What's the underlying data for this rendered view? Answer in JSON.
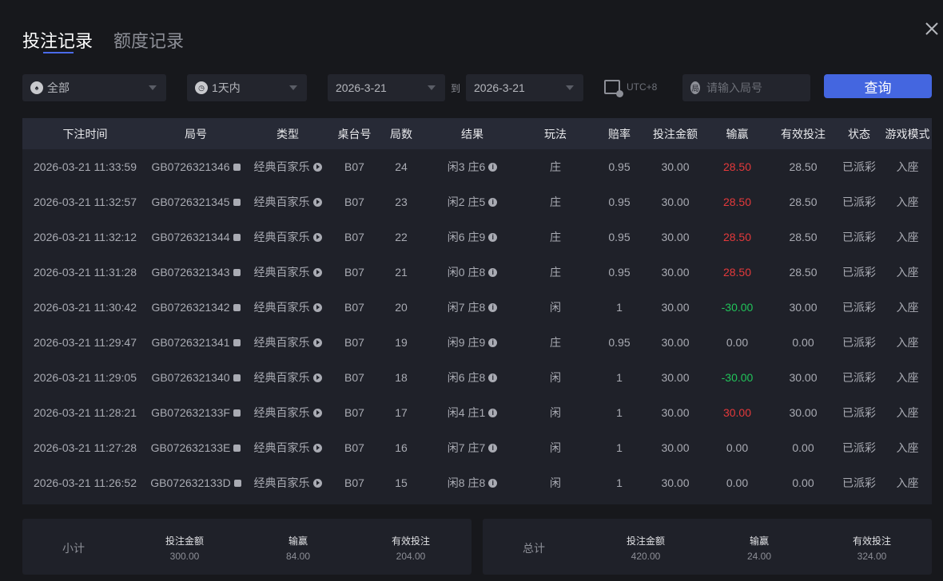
{
  "tabs": [
    {
      "label": "投注记录",
      "active": true
    },
    {
      "label": "额度记录",
      "active": false
    }
  ],
  "filters": {
    "game": "全部",
    "period": "1天内",
    "date_from": "2026-3-21",
    "to_label": "到",
    "date_to": "2026-3-21",
    "timezone": "UTC+8",
    "search_placeholder": "请输入局号",
    "query_label": "查询"
  },
  "columns": [
    "下注时间",
    "局号",
    "类型",
    "桌台号",
    "局数",
    "结果",
    "玩法",
    "赔率",
    "投注金额",
    "输赢",
    "有效投注",
    "状态",
    "游戏模式"
  ],
  "rows": [
    [
      "2026-03-21 11:33:59",
      "GB0726321346",
      "经典百家乐",
      "B07",
      "24",
      "闲3 庄6",
      "庄",
      "0.95",
      "30.00",
      "28.50",
      "28.50",
      "已派彩",
      "入座"
    ],
    [
      "2026-03-21 11:32:57",
      "GB0726321345",
      "经典百家乐",
      "B07",
      "23",
      "闲2 庄5",
      "庄",
      "0.95",
      "30.00",
      "28.50",
      "28.50",
      "已派彩",
      "入座"
    ],
    [
      "2026-03-21 11:32:12",
      "GB0726321344",
      "经典百家乐",
      "B07",
      "22",
      "闲6 庄9",
      "庄",
      "0.95",
      "30.00",
      "28.50",
      "28.50",
      "已派彩",
      "入座"
    ],
    [
      "2026-03-21 11:31:28",
      "GB0726321343",
      "经典百家乐",
      "B07",
      "21",
      "闲0 庄8",
      "庄",
      "0.95",
      "30.00",
      "28.50",
      "28.50",
      "已派彩",
      "入座"
    ],
    [
      "2026-03-21 11:30:42",
      "GB0726321342",
      "经典百家乐",
      "B07",
      "20",
      "闲7 庄8",
      "闲",
      "1",
      "30.00",
      "-30.00",
      "30.00",
      "已派彩",
      "入座"
    ],
    [
      "2026-03-21 11:29:47",
      "GB0726321341",
      "经典百家乐",
      "B07",
      "19",
      "闲9 庄9",
      "庄",
      "0.95",
      "30.00",
      "0.00",
      "0.00",
      "已派彩",
      "入座"
    ],
    [
      "2026-03-21 11:29:05",
      "GB0726321340",
      "经典百家乐",
      "B07",
      "18",
      "闲6 庄8",
      "闲",
      "1",
      "30.00",
      "-30.00",
      "30.00",
      "已派彩",
      "入座"
    ],
    [
      "2026-03-21 11:28:21",
      "GB072632133F",
      "经典百家乐",
      "B07",
      "17",
      "闲4 庄1",
      "闲",
      "1",
      "30.00",
      "30.00",
      "30.00",
      "已派彩",
      "入座"
    ],
    [
      "2026-03-21 11:27:28",
      "GB072632133E",
      "经典百家乐",
      "B07",
      "16",
      "闲7 庄7",
      "闲",
      "1",
      "30.00",
      "0.00",
      "0.00",
      "已派彩",
      "入座"
    ],
    [
      "2026-03-21 11:26:52",
      "GB072632133D",
      "经典百家乐",
      "B07",
      "15",
      "闲8 庄8",
      "闲",
      "1",
      "30.00",
      "0.00",
      "0.00",
      "已派彩",
      "入座"
    ]
  ],
  "subtotal": {
    "label": "小计",
    "bet_label": "投注金额",
    "bet": "300.00",
    "win_label": "输赢",
    "win": "84.00",
    "valid_label": "有效投注",
    "valid": "204.00"
  },
  "total": {
    "label": "总计",
    "bet_label": "投注金额",
    "bet": "420.00",
    "win_label": "输赢",
    "win": "24.00",
    "valid_label": "有效投注",
    "valid": "324.00"
  },
  "colors": {
    "accent": "#4466e0",
    "win": "#e5393b",
    "loss": "#21c45a"
  }
}
